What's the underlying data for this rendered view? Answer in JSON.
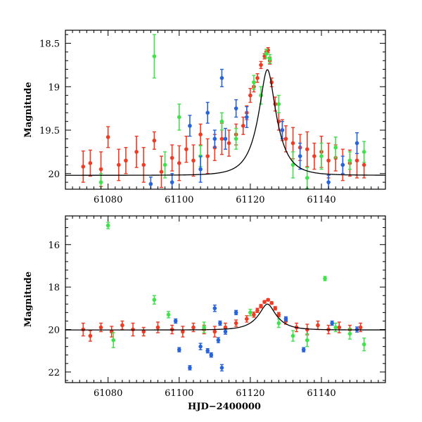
{
  "figure": {
    "xlabel": "HJD−2400000"
  },
  "chart_data": [
    {
      "type": "scatter",
      "panel": "top",
      "title": "",
      "xlabel": "HJD−2400000",
      "ylabel": "Magnitude",
      "xlim": [
        61068,
        61158
      ],
      "ylim": [
        18.35,
        20.18
      ],
      "y_inverted": true,
      "x_ticks": [
        61080,
        61100,
        61120,
        61140
      ],
      "x_tick_labels": [
        "61080",
        "61100",
        "61120",
        "61140"
      ],
      "y_ticks": [
        18.5,
        19,
        19.5,
        20
      ],
      "y_tick_labels": [
        "18.5",
        "19",
        "19.5",
        "20"
      ],
      "model": {
        "type": "microlensing-fit",
        "t0": 61124.8,
        "u0": 0.34,
        "tE": 5.2,
        "baseline": 20.02,
        "color": "#000000"
      },
      "series": [
        {
          "name": "red",
          "color": "#ef3b24",
          "x": [
            61073,
            61075,
            61078,
            61080,
            61083,
            61085,
            61088,
            61090,
            61093,
            61095,
            61098,
            61100,
            61102,
            61104,
            61106,
            61108,
            61110,
            61112,
            61114,
            61116,
            61118,
            61119,
            61120,
            61121,
            61122,
            61123,
            61124,
            61124.5,
            61125,
            61125.5,
            61126,
            61127,
            61128,
            61129,
            61130,
            61132,
            61134,
            61136,
            61138,
            61140,
            61142,
            61144,
            61146,
            61148,
            61150,
            61152
          ],
          "y": [
            19.92,
            19.88,
            19.95,
            19.58,
            19.9,
            19.85,
            19.75,
            19.9,
            19.62,
            19.98,
            19.82,
            19.88,
            19.72,
            19.85,
            19.55,
            19.8,
            19.7,
            19.6,
            19.65,
            19.55,
            19.45,
            19.3,
            19.1,
            19.0,
            18.9,
            18.75,
            18.65,
            18.6,
            18.58,
            18.7,
            18.95,
            19.2,
            19.4,
            19.5,
            19.6,
            19.65,
            19.7,
            19.72,
            19.8,
            19.75,
            19.85,
            19.82,
            19.9,
            19.88,
            19.85,
            19.9
          ],
          "err": [
            0.18,
            0.15,
            0.2,
            0.12,
            0.18,
            0.15,
            0.18,
            0.2,
            0.1,
            0.18,
            0.15,
            0.2,
            0.15,
            0.18,
            0.12,
            0.2,
            0.15,
            0.18,
            0.15,
            0.12,
            0.1,
            0.08,
            0.08,
            0.06,
            0.05,
            0.04,
            0.03,
            0.03,
            0.03,
            0.04,
            0.05,
            0.08,
            0.1,
            0.12,
            0.15,
            0.18,
            0.15,
            0.2,
            0.15,
            0.18,
            0.2,
            0.15,
            0.18,
            0.15,
            0.2,
            0.15
          ]
        },
        {
          "name": "green",
          "color": "#3ee34a",
          "x": [
            61078,
            61093,
            61096,
            61100,
            61106,
            61112,
            61116,
            61121,
            61123,
            61124.5,
            61125.5,
            61128,
            61132,
            61136,
            61140,
            61144,
            61148,
            61152
          ],
          "y": [
            20.1,
            18.65,
            19.9,
            19.35,
            19.8,
            19.4,
            19.6,
            18.95,
            19.1,
            18.62,
            18.68,
            19.2,
            19.9,
            20.05,
            19.8,
            19.7,
            19.85,
            19.75
          ],
          "err": [
            0.1,
            0.25,
            0.15,
            0.15,
            0.12,
            0.1,
            0.12,
            0.08,
            0.1,
            0.05,
            0.05,
            0.1,
            0.15,
            0.12,
            0.15,
            0.12,
            0.1,
            0.12
          ]
        },
        {
          "name": "blue",
          "color": "#2763db",
          "x": [
            61092,
            61098,
            61103,
            61106,
            61108,
            61110,
            61112,
            61113,
            61116,
            61119,
            61129,
            61134,
            61142,
            61146,
            61150
          ],
          "y": [
            20.12,
            20.1,
            19.45,
            19.95,
            19.3,
            19.6,
            18.9,
            19.6,
            19.25,
            19.35,
            19.5,
            19.8,
            20.1,
            19.9,
            19.65
          ],
          "err": [
            0.08,
            0.1,
            0.12,
            0.15,
            0.12,
            0.1,
            0.1,
            0.12,
            0.1,
            0.12,
            0.1,
            0.15,
            0.08,
            0.1,
            0.12
          ]
        }
      ]
    },
    {
      "type": "scatter",
      "panel": "bottom",
      "title": "",
      "xlabel": "HJD−2400000",
      "ylabel": "Magnitude",
      "xlim": [
        61068,
        61158
      ],
      "ylim": [
        14.65,
        22.5
      ],
      "y_inverted": true,
      "x_ticks": [
        61080,
        61100,
        61120,
        61140
      ],
      "x_tick_labels": [
        "61080",
        "61100",
        "61120",
        "61140"
      ],
      "y_ticks": [
        16,
        18,
        20,
        22
      ],
      "y_tick_labels": [
        "16",
        "18",
        "20",
        "22"
      ],
      "model": {
        "type": "microlensing-fit",
        "t0": 61124.8,
        "u0": 0.34,
        "tE": 5.2,
        "baseline": 20.02,
        "color": "#000000"
      },
      "series": [
        {
          "name": "red",
          "color": "#ef3b24",
          "x": [
            61073,
            61075,
            61078,
            61081,
            61084,
            61087,
            61090,
            61094,
            61098,
            61101,
            61104,
            61107,
            61110,
            61113,
            61116,
            61119,
            61121,
            61122,
            61123,
            61124,
            61125,
            61126,
            61127,
            61128,
            61130,
            61133,
            61136,
            61139,
            61142,
            61145,
            61148,
            61151
          ],
          "y": [
            20.0,
            20.3,
            19.9,
            20.1,
            19.8,
            20.0,
            20.1,
            19.9,
            20.0,
            20.1,
            19.9,
            20.0,
            20.1,
            19.9,
            19.7,
            19.5,
            19.3,
            19.1,
            18.9,
            18.7,
            18.6,
            18.75,
            19.0,
            19.3,
            19.6,
            19.9,
            20.0,
            19.8,
            20.0,
            19.9,
            20.0,
            19.9
          ],
          "err": [
            0.3,
            0.25,
            0.2,
            0.25,
            0.2,
            0.3,
            0.2,
            0.25,
            0.2,
            0.25,
            0.2,
            0.2,
            0.25,
            0.2,
            0.15,
            0.15,
            0.12,
            0.1,
            0.08,
            0.06,
            0.05,
            0.06,
            0.08,
            0.1,
            0.15,
            0.2,
            0.25,
            0.2,
            0.2,
            0.25,
            0.2,
            0.2
          ]
        },
        {
          "name": "green",
          "color": "#3ee34a",
          "x": [
            61080,
            61081.5,
            61093,
            61097,
            61107,
            61120,
            61128,
            61132,
            61136,
            61141,
            61144,
            61148,
            61152
          ],
          "y": [
            15.1,
            20.5,
            18.6,
            19.3,
            19.9,
            19.2,
            19.7,
            20.3,
            20.5,
            17.6,
            19.9,
            20.2,
            20.7
          ],
          "err": [
            0.15,
            0.35,
            0.2,
            0.15,
            0.25,
            0.15,
            0.2,
            0.25,
            0.3,
            0.1,
            0.2,
            0.25,
            0.3
          ]
        },
        {
          "name": "blue",
          "color": "#2763db",
          "x": [
            61099,
            61100,
            61103,
            61106,
            61108,
            61109,
            61110,
            61111,
            61111.5,
            61112,
            61113,
            61116,
            61130,
            61135,
            61143,
            61150
          ],
          "y": [
            19.6,
            20.95,
            21.8,
            20.8,
            21.0,
            21.2,
            19.0,
            20.5,
            19.7,
            21.8,
            20.1,
            19.2,
            19.5,
            20.95,
            19.7,
            20.0
          ],
          "err": [
            0.1,
            0.1,
            0.1,
            0.15,
            0.1,
            0.1,
            0.15,
            0.12,
            0.1,
            0.15,
            0.12,
            0.1,
            0.1,
            0.1,
            0.1,
            0.12
          ]
        }
      ]
    }
  ]
}
